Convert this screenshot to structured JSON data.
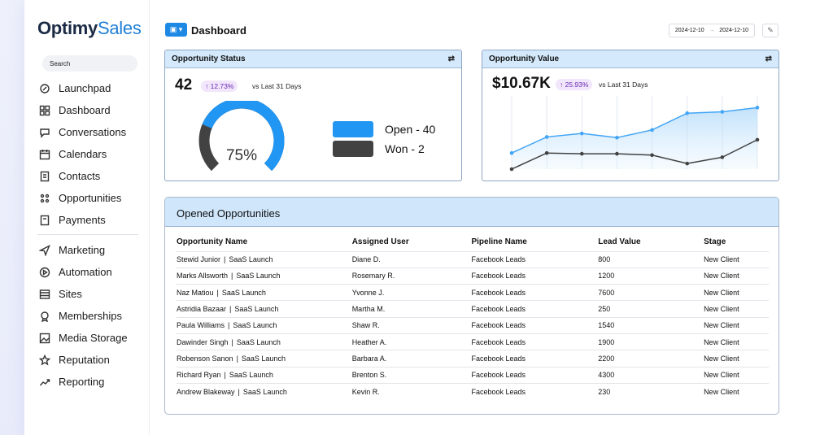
{
  "app": {
    "logo_main": "Optimy",
    "logo_accent": "Sales"
  },
  "sidebar": {
    "search_placeholder": "Search",
    "items_top": [
      {
        "label": "Launchpad",
        "icon": "rocket-icon"
      },
      {
        "label": "Dashboard",
        "icon": "grid-icon"
      },
      {
        "label": "Conversations",
        "icon": "chat-icon"
      },
      {
        "label": "Calendars",
        "icon": "calendar-icon"
      },
      {
        "label": "Contacts",
        "icon": "contacts-icon"
      },
      {
        "label": "Opportunities",
        "icon": "opportunities-icon"
      },
      {
        "label": "Payments",
        "icon": "payments-icon"
      }
    ],
    "items_bottom": [
      {
        "label": "Marketing",
        "icon": "send-icon"
      },
      {
        "label": "Automation",
        "icon": "automation-icon"
      },
      {
        "label": "Sites",
        "icon": "sites-icon"
      },
      {
        "label": "Memberships",
        "icon": "membership-icon"
      },
      {
        "label": "Media Storage",
        "icon": "image-icon"
      },
      {
        "label": "Reputation",
        "icon": "star-icon"
      },
      {
        "label": "Reporting",
        "icon": "trend-icon"
      }
    ]
  },
  "header": {
    "title": "Dashboard",
    "date_start": "2024-12-10",
    "date_arrow": "→",
    "date_end": "2024-12-10"
  },
  "opportunity_status": {
    "title": "Opportunity Status",
    "count": "42",
    "change": "↑ 12.73%",
    "vs": "vs Last 31 Days",
    "gauge_percent": 75,
    "gauge_label": "75%",
    "legend": [
      {
        "label": "Open - 40",
        "color": "#2196f3"
      },
      {
        "label": "Won - 2",
        "color": "#424242"
      }
    ]
  },
  "opportunity_value": {
    "title": "Opportunity Value",
    "amount": "$10.67K",
    "change": "↑ 25.93%",
    "vs": "vs Last 31 Days"
  },
  "chart_data": {
    "type": "area",
    "series": [
      {
        "color": "#42a5f5",
        "values": [
          23,
          46,
          51,
          45,
          56,
          80,
          82,
          88
        ]
      },
      {
        "color": "#424242",
        "values": [
          0,
          23,
          22,
          22,
          20,
          8,
          17,
          42
        ]
      }
    ],
    "ylim": [
      0,
      100
    ],
    "grid": "vertical"
  },
  "table": {
    "title": "Opened Opportunities",
    "columns": [
      "Opportunity Name",
      "Assigned User",
      "Pipeline Name",
      "Lead Value",
      "Stage"
    ],
    "rows": [
      [
        "Stewid Junior",
        "SaaS Launch",
        "Diane D.",
        "Facebook Leads",
        "800",
        "New Client"
      ],
      [
        "Marks Allsworth",
        "SaaS Launch",
        "Rosemary R.",
        "Facebook Leads",
        "1200",
        "New Client"
      ],
      [
        "Naz Matiou",
        "SaaS Launch",
        "Yvonne J.",
        "Facebook Leads",
        "7600",
        "New Client"
      ],
      [
        "Astridia Bazaar",
        "SaaS Launch",
        "Martha M.",
        "Facebook Leads",
        "250",
        "New Client"
      ],
      [
        "Paula Williams",
        "SaaS Launch",
        "Shaw R.",
        "Facebook Leads",
        "1540",
        "New Client"
      ],
      [
        "Dawinder Singh",
        "SaaS Launch",
        "Heather A.",
        "Facebook Leads",
        "1900",
        "New Client"
      ],
      [
        "Robenson Sanon",
        "SaaS Launch",
        "Barbara A.",
        "Facebook Leads",
        "2200",
        "New Client"
      ],
      [
        "Richard Ryan",
        "SaaS Launch",
        "Brenton S.",
        "Facebook Leads",
        "4300",
        "New Client"
      ],
      [
        "Andrew Blakeway",
        "SaaS Launch",
        "Kevin R.",
        "Facebook Leads",
        "230",
        "New Client"
      ]
    ],
    "name_separator": "|"
  }
}
